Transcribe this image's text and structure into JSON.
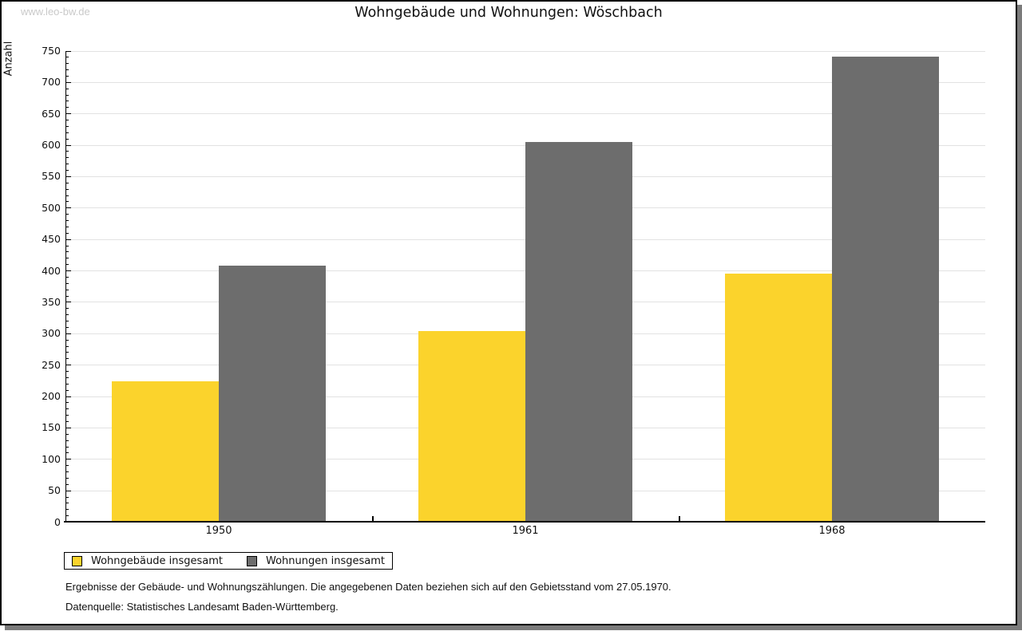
{
  "watermark": "www.leo-bw.de",
  "title": "Wohngebäude und Wohnungen: Wöschbach",
  "colors": {
    "yellow_bar": "#fbd32c",
    "gray_bar": "#6d6d6d",
    "gridline": "#e2e2e2",
    "shadow": "#7b7b7b",
    "watermark_gray": "#c9c9c9"
  },
  "legend": {
    "items": [
      {
        "label": "Wohngebäude insgesamt",
        "color": "#fbd32c"
      },
      {
        "label": "Wohnungen insgesamt",
        "color": "#6d6d6d"
      }
    ]
  },
  "footnotes": [
    "Ergebnisse der Gebäude- und Wohnungszählungen. Die angegebenen Daten beziehen sich auf den Gebietsstand vom 27.05.1970.",
    "Datenquelle: Statistisches Landesamt Baden-Württemberg."
  ],
  "chart_data": {
    "type": "bar",
    "title": "Wohngebäude und Wohnungen: Wöschbach",
    "xlabel": "",
    "ylabel": "Anzahl",
    "categories": [
      "1950",
      "1961",
      "1968"
    ],
    "series": [
      {
        "name": "Wohngebäude insgesamt",
        "color": "#fbd32c",
        "values": [
          224,
          304,
          395
        ]
      },
      {
        "name": "Wohnungen insgesamt",
        "color": "#6d6d6d",
        "values": [
          408,
          604,
          740
        ]
      }
    ],
    "ylim": [
      0,
      750
    ],
    "y_major_step": 50,
    "y_minor_step": 10,
    "grid": true,
    "legend_position": "bottom-left"
  }
}
